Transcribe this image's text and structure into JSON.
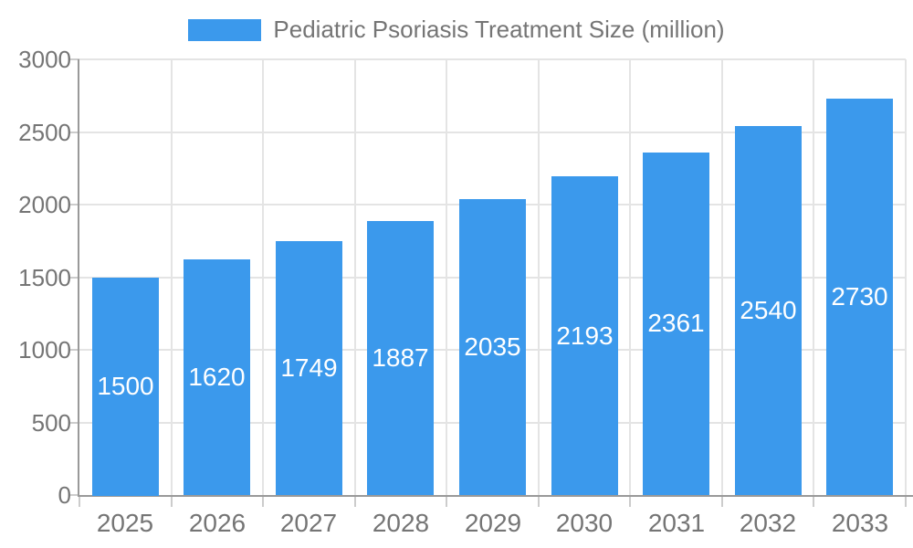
{
  "chart_data": {
    "type": "bar",
    "title": "Pediatric Psoriasis Treatment Size (million)",
    "categories": [
      "2025",
      "2026",
      "2027",
      "2028",
      "2029",
      "2030",
      "2031",
      "2032",
      "2033"
    ],
    "series": [
      {
        "name": "Pediatric Psoriasis Treatment Size (million)",
        "values": [
          1500,
          1620,
          1749,
          1887,
          2035,
          2193,
          2361,
          2540,
          2730
        ]
      }
    ],
    "xlabel": "",
    "ylabel": "",
    "ylim": [
      0,
      3000
    ],
    "y_ticks": [
      0,
      500,
      1000,
      1500,
      2000,
      2500,
      3000
    ],
    "grid": true,
    "legend_position": "top",
    "bar_value_labels": true
  },
  "colors": {
    "bar": "#3B99EC",
    "text": "#757575",
    "axis": "#999999",
    "grid": "#E4E4E4",
    "tick": "#CCCCCC",
    "bar_label": "#FFFFFF",
    "background": "#FFFFFF"
  }
}
